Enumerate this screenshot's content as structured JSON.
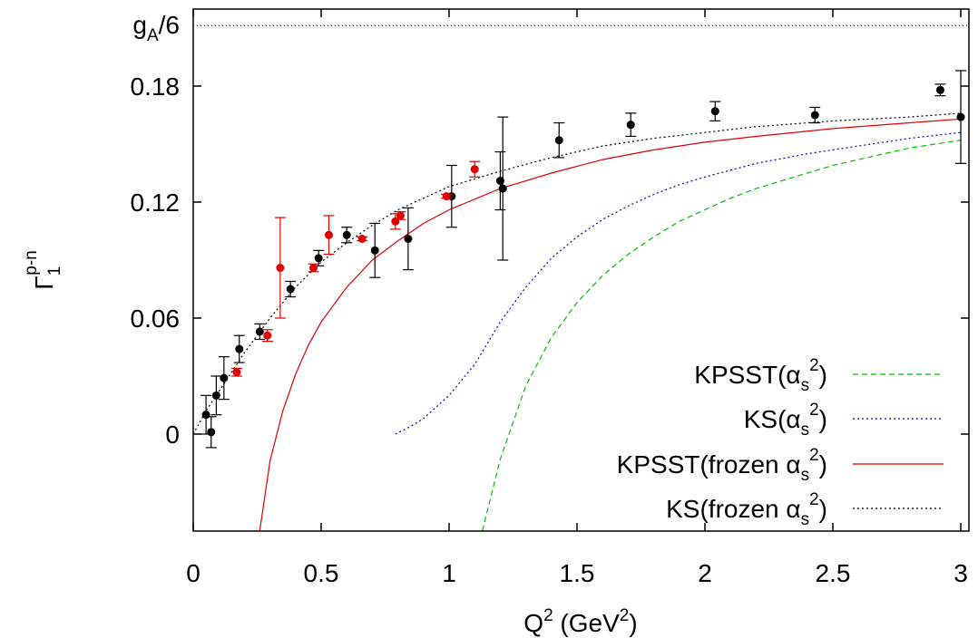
{
  "chart_data": {
    "type": "scatter",
    "xlim": [
      0,
      3.05
    ],
    "ylim": [
      -0.05,
      0.21
    ],
    "xlabel": {
      "base": "Q",
      "sup": "2",
      "mid": " (GeV",
      "sup2": "2",
      "end": ")"
    },
    "ylabel": {
      "base": "Γ",
      "sub": "1",
      "sup": "p-n"
    },
    "x_ticks": [
      {
        "value": 0,
        "label": "0"
      },
      {
        "value": 0.5,
        "label": "0.5"
      },
      {
        "value": 1,
        "label": "1"
      },
      {
        "value": 1.5,
        "label": "1.5"
      },
      {
        "value": 2,
        "label": "2"
      },
      {
        "value": 2.5,
        "label": "2.5"
      },
      {
        "value": 3,
        "label": "3"
      }
    ],
    "y_ticks": [
      {
        "value": 0,
        "label": "0"
      },
      {
        "value": 0.06,
        "label": "0.06"
      },
      {
        "value": 0.12,
        "label": "0.12"
      },
      {
        "value": 0.18,
        "label": "0.18"
      }
    ],
    "reference_line": {
      "value": 0.2113,
      "label_base": "g",
      "label_sub": "A",
      "label_rest": "/6",
      "color": "#000000"
    },
    "grid": false,
    "legend_position": "bottom-right",
    "legend": [
      {
        "pre": "KPSST(α",
        "sub": "s",
        "sup": "2",
        "post": ")",
        "color": "#00c000",
        "dash": "6,4"
      },
      {
        "pre": "KS(α",
        "sub": "s",
        "sup": "2",
        "post": ")",
        "color": "#0000c8",
        "dash": "2,3"
      },
      {
        "pre": "KPSST(frozen α",
        "sub": "s",
        "sup": "2",
        "post": ")",
        "color": "#e00000",
        "dash": ""
      },
      {
        "pre": "KS(frozen α",
        "sub": "s",
        "sup": "2",
        "post": ")",
        "color": "#000000",
        "dash": "2,3"
      }
    ],
    "curves": [
      {
        "name": "KPSST(αs2)",
        "color": "#00c000",
        "dash": "6,4",
        "x": [
          1.13,
          1.2,
          1.3,
          1.4,
          1.5,
          1.6,
          1.7,
          1.8,
          1.9,
          2.0,
          2.1,
          2.2,
          2.3,
          2.4,
          2.5,
          2.6,
          2.7,
          2.8,
          2.9,
          3.0
        ],
        "y": [
          -0.05,
          -0.013,
          0.025,
          0.05,
          0.068,
          0.082,
          0.093,
          0.102,
          0.11,
          0.116,
          0.122,
          0.127,
          0.131,
          0.135,
          0.139,
          0.142,
          0.145,
          0.148,
          0.15,
          0.152
        ]
      },
      {
        "name": "KS(αs2)",
        "color": "#0000c8",
        "dash": "2,3",
        "x": [
          0.79,
          0.85,
          0.9,
          1.0,
          1.1,
          1.2,
          1.3,
          1.4,
          1.5,
          1.6,
          1.7,
          1.8,
          1.9,
          2.0,
          2.2,
          2.4,
          2.6,
          2.8,
          3.0
        ],
        "y": [
          0.0,
          0.004,
          0.008,
          0.02,
          0.036,
          0.058,
          0.076,
          0.091,
          0.102,
          0.111,
          0.118,
          0.124,
          0.129,
          0.133,
          0.14,
          0.145,
          0.149,
          0.153,
          0.156
        ]
      },
      {
        "name": "KPSST(frozen αs2)",
        "color": "#e00000",
        "dash": "",
        "x": [
          0.26,
          0.3,
          0.35,
          0.4,
          0.45,
          0.5,
          0.6,
          0.7,
          0.8,
          0.9,
          1.0,
          1.2,
          1.4,
          1.6,
          1.8,
          2.0,
          2.2,
          2.5,
          2.8,
          3.0
        ],
        "y": [
          -0.05,
          -0.014,
          0.012,
          0.031,
          0.046,
          0.058,
          0.076,
          0.09,
          0.1,
          0.109,
          0.116,
          0.127,
          0.135,
          0.142,
          0.147,
          0.151,
          0.154,
          0.158,
          0.161,
          0.163
        ]
      },
      {
        "name": "KS(frozen αs2)",
        "color": "#000000",
        "dash": "2,3",
        "x": [
          0.0,
          0.05,
          0.1,
          0.15,
          0.2,
          0.3,
          0.4,
          0.5,
          0.6,
          0.7,
          0.8,
          1.0,
          1.2,
          1.4,
          1.6,
          1.8,
          2.0,
          2.2,
          2.5,
          2.8,
          3.0
        ],
        "y": [
          0.0,
          0.012,
          0.022,
          0.032,
          0.042,
          0.06,
          0.076,
          0.089,
          0.099,
          0.108,
          0.116,
          0.128,
          0.136,
          0.143,
          0.149,
          0.153,
          0.156,
          0.159,
          0.162,
          0.164,
          0.166
        ]
      }
    ],
    "series": [
      {
        "name": "black-points",
        "color": "#000000",
        "points": [
          {
            "x": 0.05,
            "y": 0.01,
            "err": 0.01
          },
          {
            "x": 0.07,
            "y": 0.001,
            "err": 0.008
          },
          {
            "x": 0.09,
            "y": 0.02,
            "err": 0.01
          },
          {
            "x": 0.12,
            "y": 0.029,
            "err": 0.011
          },
          {
            "x": 0.18,
            "y": 0.044,
            "err": 0.007
          },
          {
            "x": 0.26,
            "y": 0.053,
            "err": 0.004
          },
          {
            "x": 0.38,
            "y": 0.075,
            "err": 0.004
          },
          {
            "x": 0.49,
            "y": 0.091,
            "err": 0.004
          },
          {
            "x": 0.6,
            "y": 0.103,
            "err": 0.004
          },
          {
            "x": 0.71,
            "y": 0.095,
            "err": 0.014
          },
          {
            "x": 0.84,
            "y": 0.101,
            "err": 0.016
          },
          {
            "x": 1.01,
            "y": 0.123,
            "err": 0.016
          },
          {
            "x": 1.2,
            "y": 0.131,
            "err": 0.015
          },
          {
            "x": 1.21,
            "y": 0.127,
            "err": 0.037
          },
          {
            "x": 1.43,
            "y": 0.152,
            "err": 0.009
          },
          {
            "x": 1.71,
            "y": 0.16,
            "err": 0.006
          },
          {
            "x": 2.04,
            "y": 0.167,
            "err": 0.005
          },
          {
            "x": 2.43,
            "y": 0.165,
            "err": 0.004
          },
          {
            "x": 2.92,
            "y": 0.178,
            "err": 0.003
          },
          {
            "x": 3.0,
            "y": 0.164,
            "err": 0.024
          }
        ]
      },
      {
        "name": "red-points",
        "color": "#e00000",
        "points": [
          {
            "x": 0.17,
            "y": 0.032,
            "err": 0.002
          },
          {
            "x": 0.29,
            "y": 0.051,
            "err": 0.003
          },
          {
            "x": 0.34,
            "y": 0.086,
            "err": 0.026
          },
          {
            "x": 0.47,
            "y": 0.086,
            "err": 0.002
          },
          {
            "x": 0.53,
            "y": 0.103,
            "err": 0.01
          },
          {
            "x": 0.66,
            "y": 0.101,
            "err": 0.001
          },
          {
            "x": 0.79,
            "y": 0.11,
            "err": 0.004
          },
          {
            "x": 0.81,
            "y": 0.113,
            "err": 0.002
          },
          {
            "x": 0.99,
            "y": 0.123,
            "err": 0.001
          },
          {
            "x": 1.1,
            "y": 0.137,
            "err": 0.004
          }
        ]
      }
    ]
  }
}
